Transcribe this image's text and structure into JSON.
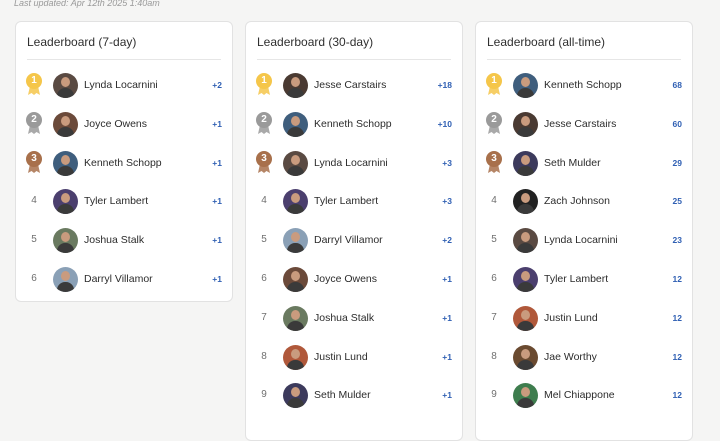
{
  "last_updated": "Last updated: Apr 12th 2025 1:40am",
  "colors": {
    "gold": "#f5c64a",
    "silver": "#9a9a9a",
    "bronze": "#a8704b",
    "score": "#2f5fb3"
  },
  "leaderboards": [
    {
      "title": "Leaderboard (7-day)",
      "rows": [
        {
          "rank": "1",
          "name": "Lynda Locarnini",
          "score": "+2",
          "medal": "gold",
          "avatar": "#5a4a42"
        },
        {
          "rank": "2",
          "name": "Joyce Owens",
          "score": "+1",
          "medal": "silver",
          "avatar": "#6b4a3a"
        },
        {
          "rank": "3",
          "name": "Kenneth Schopp",
          "score": "+1",
          "medal": "bronze",
          "avatar": "#3f5e7d"
        },
        {
          "rank": "4",
          "name": "Tyler Lambert",
          "score": "+1",
          "medal": "",
          "avatar": "#4b3f6e"
        },
        {
          "rank": "5",
          "name": "Joshua Stalk",
          "score": "+1",
          "medal": "",
          "avatar": "#6a7a60"
        },
        {
          "rank": "6",
          "name": "Darryl Villamor",
          "score": "+1",
          "medal": "",
          "avatar": "#8aa0b6"
        }
      ]
    },
    {
      "title": "Leaderboard (30-day)",
      "rows": [
        {
          "rank": "1",
          "name": "Jesse Carstairs",
          "score": "+18",
          "medal": "gold",
          "avatar": "#4a3a32"
        },
        {
          "rank": "2",
          "name": "Kenneth Schopp",
          "score": "+10",
          "medal": "silver",
          "avatar": "#3f5e7d"
        },
        {
          "rank": "3",
          "name": "Lynda Locarnini",
          "score": "+3",
          "medal": "bronze",
          "avatar": "#5a4a42"
        },
        {
          "rank": "4",
          "name": "Tyler Lambert",
          "score": "+3",
          "medal": "",
          "avatar": "#4b3f6e"
        },
        {
          "rank": "5",
          "name": "Darryl Villamor",
          "score": "+2",
          "medal": "",
          "avatar": "#8aa0b6"
        },
        {
          "rank": "6",
          "name": "Joyce Owens",
          "score": "+1",
          "medal": "",
          "avatar": "#6b4a3a"
        },
        {
          "rank": "7",
          "name": "Joshua Stalk",
          "score": "+1",
          "medal": "",
          "avatar": "#6a7a60"
        },
        {
          "rank": "8",
          "name": "Justin Lund",
          "score": "+1",
          "medal": "",
          "avatar": "#b0583a"
        },
        {
          "rank": "9",
          "name": "Seth Mulder",
          "score": "+1",
          "medal": "",
          "avatar": "#3c3a5c"
        }
      ]
    },
    {
      "title": "Leaderboard (all-time)",
      "rows": [
        {
          "rank": "1",
          "name": "Kenneth Schopp",
          "score": "68",
          "medal": "gold",
          "avatar": "#3f5e7d"
        },
        {
          "rank": "2",
          "name": "Jesse Carstairs",
          "score": "60",
          "medal": "silver",
          "avatar": "#4a3a32"
        },
        {
          "rank": "3",
          "name": "Seth Mulder",
          "score": "29",
          "medal": "bronze",
          "avatar": "#3c3a5c"
        },
        {
          "rank": "4",
          "name": "Zach Johnson",
          "score": "25",
          "medal": "",
          "avatar": "#222222"
        },
        {
          "rank": "5",
          "name": "Lynda Locarnini",
          "score": "23",
          "medal": "",
          "avatar": "#5a4a42"
        },
        {
          "rank": "6",
          "name": "Tyler Lambert",
          "score": "12",
          "medal": "",
          "avatar": "#4b3f6e"
        },
        {
          "rank": "7",
          "name": "Justin Lund",
          "score": "12",
          "medal": "",
          "avatar": "#b0583a"
        },
        {
          "rank": "8",
          "name": "Jae Worthy",
          "score": "12",
          "medal": "",
          "avatar": "#6a4a30"
        },
        {
          "rank": "9",
          "name": "Mel Chiappone",
          "score": "12",
          "medal": "",
          "avatar": "#3e7d4e"
        }
      ]
    }
  ]
}
